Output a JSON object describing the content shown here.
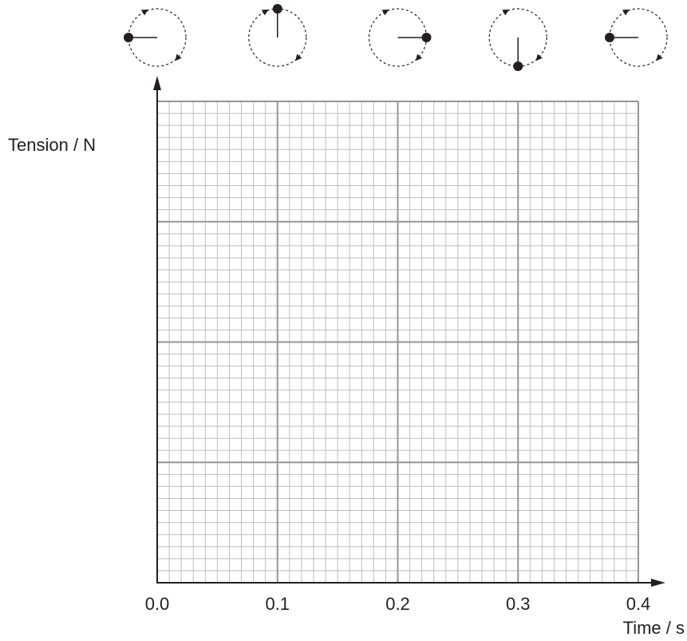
{
  "chart_data": {
    "type": "line",
    "x_label": "Time / s",
    "y_label": "Tension / N",
    "xlim": [
      0,
      0.4
    ],
    "xticks": [
      {
        "value": 0,
        "label": "0.0"
      },
      0.1,
      0.2,
      0.3,
      0.4
    ],
    "grid": true
  }
}
